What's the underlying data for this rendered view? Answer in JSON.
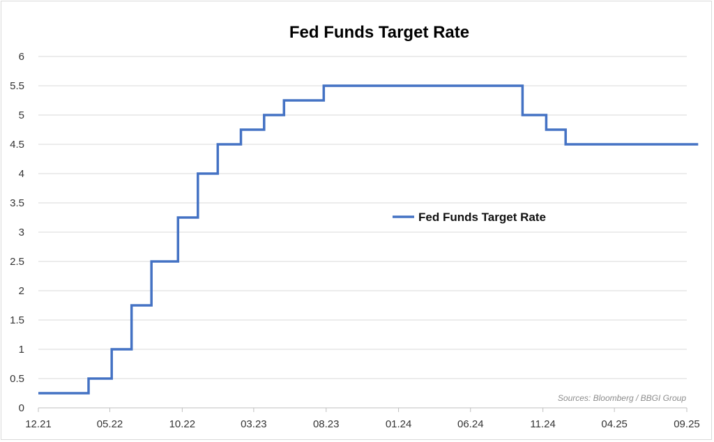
{
  "chart_data": {
    "type": "line",
    "step": true,
    "title": "Fed Funds Target Rate",
    "xlabel": "",
    "ylabel": "",
    "ylim": [
      0,
      6
    ],
    "y_ticks": [
      "0",
      "0.5",
      "1",
      "1.5",
      "2",
      "2.5",
      "3",
      "3.5",
      "4",
      "4.5",
      "5",
      "5.5",
      "6"
    ],
    "x_ticks": [
      "12.21",
      "05.22",
      "10.22",
      "03.23",
      "08.23",
      "01.24",
      "06.24",
      "11.24",
      "04.25",
      "09.25"
    ],
    "grid": true,
    "legend": {
      "placement": "center-right",
      "entries": [
        "Fed Funds Target Rate"
      ]
    },
    "series": [
      {
        "name": "Fed Funds Target Rate",
        "color": "#4472C4",
        "points": [
          {
            "x": "2021-12-01",
            "y": 0.25
          },
          {
            "x": "2022-03-17",
            "y": 0.5
          },
          {
            "x": "2022-05-05",
            "y": 1.0
          },
          {
            "x": "2022-06-16",
            "y": 1.75
          },
          {
            "x": "2022-07-28",
            "y": 2.5
          },
          {
            "x": "2022-09-22",
            "y": 3.25
          },
          {
            "x": "2022-11-03",
            "y": 4.0
          },
          {
            "x": "2022-12-15",
            "y": 4.5
          },
          {
            "x": "2023-02-02",
            "y": 4.75
          },
          {
            "x": "2023-03-23",
            "y": 5.0
          },
          {
            "x": "2023-05-04",
            "y": 5.25
          },
          {
            "x": "2023-07-27",
            "y": 5.5
          },
          {
            "x": "2024-09-19",
            "y": 5.0
          },
          {
            "x": "2024-11-08",
            "y": 4.75
          },
          {
            "x": "2024-12-19",
            "y": 4.5
          },
          {
            "x": "2025-09-25",
            "y": 4.5
          }
        ]
      }
    ],
    "source": "Sources: Bloomberg / BBGI Group"
  }
}
